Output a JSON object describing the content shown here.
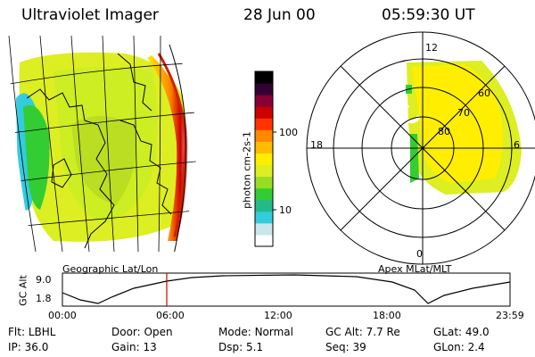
{
  "header": {
    "title": "Ultraviolet Imager",
    "date": "28 Jun 00",
    "time": "05:59:30 UT"
  },
  "colorbar": {
    "unit_label": "photon cm-2s-1",
    "ticks": [
      "100",
      "10"
    ],
    "colors": [
      "#ffffff",
      "#c8e6ec",
      "#33ccdd",
      "#22bb88",
      "#33cc33",
      "#99dd22",
      "#ddee22",
      "#ffee00",
      "#ffbb00",
      "#ff8800",
      "#ff3300",
      "#cc0000",
      "#880033",
      "#330033",
      "#000000"
    ]
  },
  "polar_plot": {
    "hour_labels": {
      "top": "12",
      "left": "18",
      "right": "6",
      "bottom": "0"
    },
    "lat_labels": [
      "60",
      "70",
      "80"
    ],
    "caption": "Apex MLat/MLT"
  },
  "map": {
    "caption": "Geographic Lat/Lon"
  },
  "altitude_plot": {
    "ylabel": "GC Alt",
    "yticks": [
      "9.0",
      "1.8"
    ],
    "xticks": [
      "00:00",
      "06:00",
      "12:00",
      "18:00",
      "23:59"
    ],
    "current_time_marker": "06:00"
  },
  "footer": {
    "row1": [
      {
        "label": "Flt:",
        "value": "LBHL"
      },
      {
        "label": "Door:",
        "value": "Open"
      },
      {
        "label": "Mode:",
        "value": "Normal"
      },
      {
        "label": "GC Alt:",
        "value": "7.7 Re"
      },
      {
        "label": "GLat:",
        "value": "49.0"
      }
    ],
    "row2": [
      {
        "label": "IP:",
        "value": "36.0"
      },
      {
        "label": "Gain:",
        "value": "13"
      },
      {
        "label": "Dsp:",
        "value": "5.1"
      },
      {
        "label": "Seq:",
        "value": "39"
      },
      {
        "label": "GLon:",
        "value": "2.4"
      }
    ]
  }
}
